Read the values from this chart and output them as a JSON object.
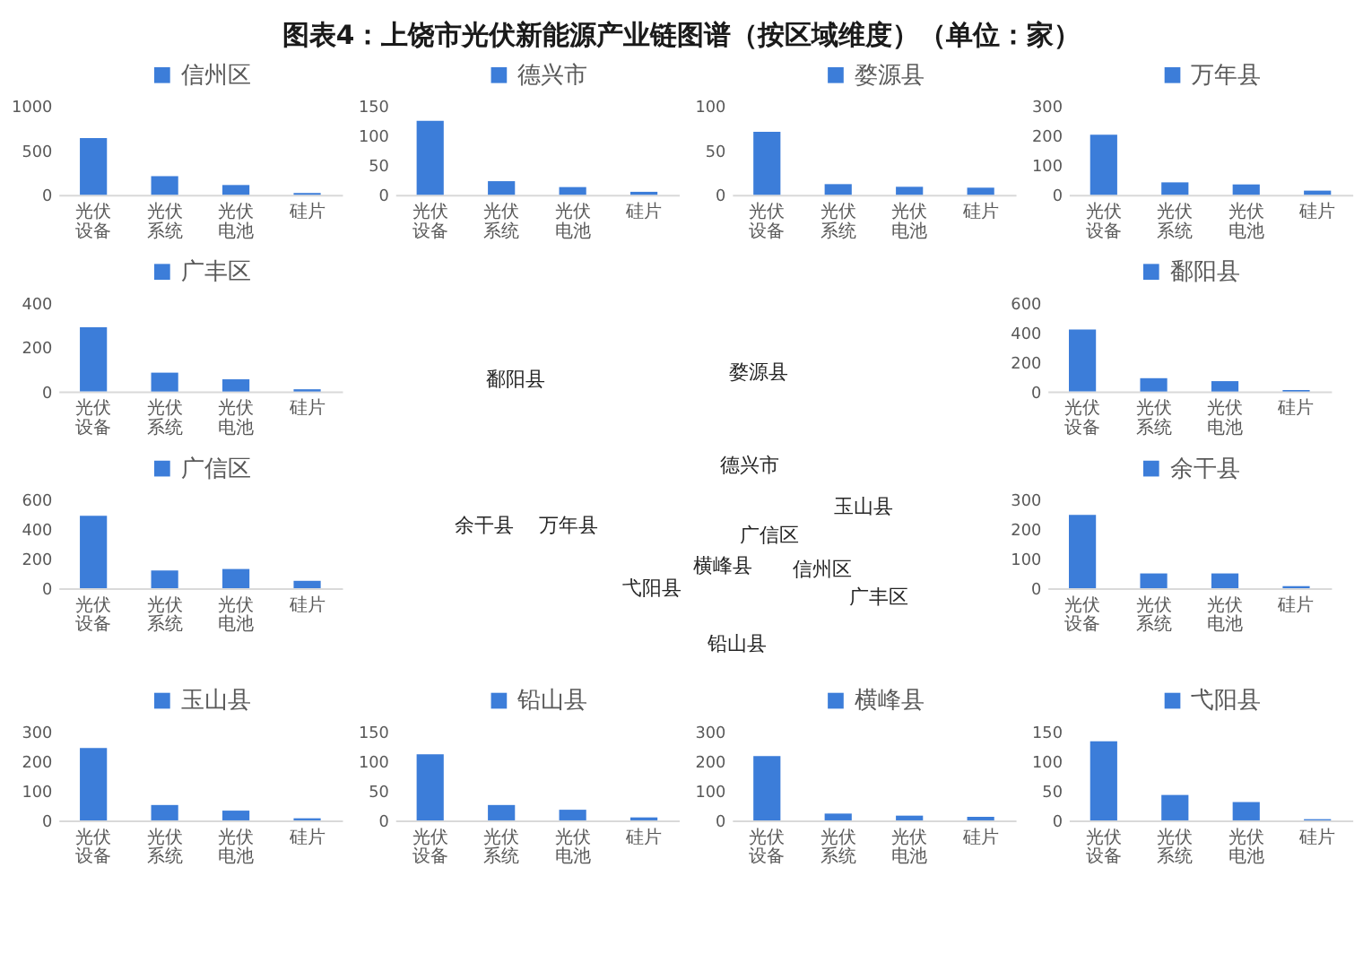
{
  "chart_data": [
    {
      "type": "other",
      "title": "图表4：上饶市光伏新能源产业链图谱（按区域维度）（单位：家）",
      "annotations": [
        "鄱阳县",
        "婺源县",
        "德兴市",
        "玉山县",
        "余干县",
        "万年县",
        "广信区",
        "横峰县",
        "信州区",
        "弋阳县",
        "广丰区",
        "铅山县"
      ]
    },
    {
      "type": "bar",
      "categories": [
        "光伏设备",
        "光伏系统",
        "光伏电池",
        "硅片"
      ],
      "series": [
        {
          "name": "信州区",
          "color": "#3c7dd9",
          "values": [
            640,
            210,
            110,
            20
          ]
        }
      ],
      "ylim": [
        0,
        1000
      ],
      "yticks": [
        0,
        500,
        1000
      ],
      "legend": "top"
    },
    {
      "type": "bar",
      "categories": [
        "光伏设备",
        "光伏系统",
        "光伏电池",
        "硅片"
      ],
      "series": [
        {
          "name": "德兴市",
          "color": "#3c7dd9",
          "values": [
            125,
            23,
            13,
            5
          ]
        }
      ],
      "ylim": [
        0,
        150
      ],
      "yticks": [
        0,
        50,
        100,
        150
      ],
      "legend": "top"
    },
    {
      "type": "bar",
      "categories": [
        "光伏设备",
        "光伏系统",
        "光伏电池",
        "硅片"
      ],
      "series": [
        {
          "name": "婺源县",
          "color": "#3c7dd9",
          "values": [
            71,
            12,
            9,
            8
          ]
        }
      ],
      "ylim": [
        0,
        100
      ],
      "yticks": [
        0,
        50,
        100
      ],
      "legend": "top"
    },
    {
      "type": "bar",
      "categories": [
        "光伏设备",
        "光伏系统",
        "光伏电池",
        "硅片"
      ],
      "series": [
        {
          "name": "万年县",
          "color": "#3c7dd9",
          "values": [
            203,
            42,
            35,
            14
          ]
        }
      ],
      "ylim": [
        0,
        300
      ],
      "yticks": [
        0,
        100,
        200,
        300
      ],
      "legend": "top"
    },
    {
      "type": "bar",
      "categories": [
        "光伏设备",
        "光伏系统",
        "光伏电池",
        "硅片"
      ],
      "series": [
        {
          "name": "广丰区",
          "color": "#3c7dd9",
          "values": [
            290,
            85,
            55,
            10
          ]
        }
      ],
      "ylim": [
        0,
        400
      ],
      "yticks": [
        0,
        200,
        400
      ],
      "legend": "top"
    },
    {
      "type": "bar",
      "categories": [
        "光伏设备",
        "光伏系统",
        "光伏电池",
        "硅片"
      ],
      "series": [
        {
          "name": "鄱阳县",
          "color": "#3c7dd9",
          "values": [
            420,
            90,
            70,
            10
          ]
        }
      ],
      "ylim": [
        0,
        600
      ],
      "yticks": [
        0,
        200,
        400,
        600
      ],
      "legend": "top"
    },
    {
      "type": "bar",
      "categories": [
        "光伏设备",
        "光伏系统",
        "光伏电池",
        "硅片"
      ],
      "series": [
        {
          "name": "广信区",
          "color": "#3c7dd9",
          "values": [
            490,
            120,
            130,
            50
          ]
        }
      ],
      "ylim": [
        0,
        600
      ],
      "yticks": [
        0,
        200,
        400,
        600
      ],
      "legend": "top"
    },
    {
      "type": "bar",
      "categories": [
        "光伏设备",
        "光伏系统",
        "光伏电池",
        "硅片"
      ],
      "series": [
        {
          "name": "余干县",
          "color": "#3c7dd9",
          "values": [
            248,
            50,
            50,
            7
          ]
        }
      ],
      "ylim": [
        0,
        300
      ],
      "yticks": [
        0,
        100,
        200,
        300
      ],
      "legend": "top"
    },
    {
      "type": "bar",
      "categories": [
        "光伏设备",
        "光伏系统",
        "光伏电池",
        "硅片"
      ],
      "series": [
        {
          "name": "玉山县",
          "color": "#3c7dd9",
          "values": [
            245,
            52,
            33,
            7
          ]
        }
      ],
      "ylim": [
        0,
        300
      ],
      "yticks": [
        0,
        100,
        200,
        300
      ],
      "legend": "top"
    },
    {
      "type": "bar",
      "categories": [
        "光伏设备",
        "光伏系统",
        "光伏电池",
        "硅片"
      ],
      "series": [
        {
          "name": "铅山县",
          "color": "#3c7dd9",
          "values": [
            112,
            26,
            18,
            5
          ]
        }
      ],
      "ylim": [
        0,
        150
      ],
      "yticks": [
        0,
        50,
        100,
        150
      ],
      "legend": "top"
    },
    {
      "type": "bar",
      "categories": [
        "光伏设备",
        "光伏系统",
        "光伏电池",
        "硅片"
      ],
      "series": [
        {
          "name": "横峰县",
          "color": "#3c7dd9",
          "values": [
            218,
            23,
            16,
            12
          ]
        }
      ],
      "ylim": [
        0,
        300
      ],
      "yticks": [
        0,
        100,
        200,
        300
      ],
      "legend": "top"
    },
    {
      "type": "bar",
      "categories": [
        "光伏设备",
        "光伏系统",
        "光伏电池",
        "硅片"
      ],
      "series": [
        {
          "name": "弋阳县",
          "color": "#3c7dd9",
          "values": [
            134,
            43,
            31,
            2
          ]
        }
      ],
      "ylim": [
        0,
        150
      ],
      "yticks": [
        0,
        50,
        100,
        150
      ],
      "legend": "top"
    }
  ]
}
